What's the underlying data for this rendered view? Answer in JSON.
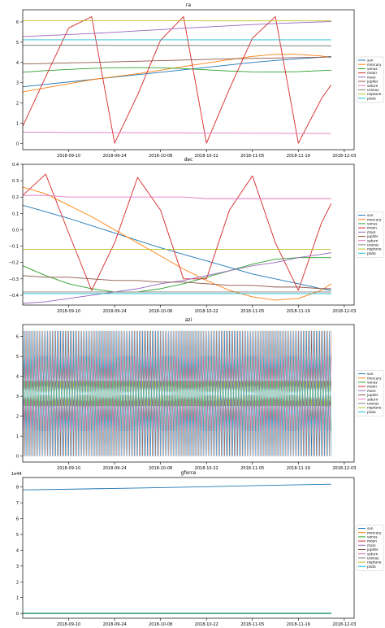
{
  "chart_data": [
    {
      "type": "line",
      "title": "ra",
      "ylim": [
        -0.3,
        6.6
      ],
      "yticks": [
        0,
        1,
        2,
        3,
        4,
        5,
        6
      ],
      "ytick_labels": [
        "0",
        "1",
        "2",
        "3",
        "4",
        "5",
        "6"
      ],
      "x_dates": [
        "2018-08-27",
        "2018-09-03",
        "2018-09-10",
        "2018-09-17",
        "2018-09-24",
        "2018-10-01",
        "2018-10-08",
        "2018-10-15",
        "2018-10-22",
        "2018-10-29",
        "2018-11-05",
        "2018-11-12",
        "2018-11-19",
        "2018-11-26",
        "2018-11-29"
      ],
      "grid": false,
      "legend": "right",
      "series": [
        {
          "name": "sun",
          "values": [
            2.8,
            2.92,
            3.04,
            3.16,
            3.28,
            3.4,
            3.52,
            3.64,
            3.76,
            3.88,
            4.0,
            4.1,
            4.18,
            4.26,
            4.3
          ]
        },
        {
          "name": "mercury",
          "values": [
            2.55,
            2.75,
            2.95,
            3.15,
            3.3,
            3.45,
            3.62,
            3.8,
            3.97,
            4.14,
            4.3,
            4.4,
            4.4,
            4.32,
            4.25
          ]
        },
        {
          "name": "venus",
          "values": [
            3.52,
            3.6,
            3.66,
            3.71,
            3.74,
            3.75,
            3.74,
            3.7,
            3.64,
            3.58,
            3.54,
            3.53,
            3.55,
            3.6,
            3.62
          ]
        },
        {
          "name": "moon",
          "values": [
            0.85,
            3.3,
            5.7,
            6.26,
            0.02,
            2.4,
            5.1,
            6.26,
            0.02,
            2.7,
            5.2,
            6.26,
            0.02,
            2.2,
            2.9
          ]
        },
        {
          "name": "mars",
          "values": [
            5.28,
            5.33,
            5.38,
            5.43,
            5.49,
            5.56,
            5.62,
            5.69,
            5.75,
            5.81,
            5.87,
            5.92,
            5.96,
            6.0,
            6.02
          ]
        },
        {
          "name": "jupiter",
          "values": [
            3.93,
            3.95,
            3.98,
            4.0,
            4.03,
            4.06,
            4.09,
            4.12,
            4.15,
            4.18,
            4.2,
            4.22,
            4.24,
            4.26,
            4.27
          ]
        },
        {
          "name": "saturn",
          "values": [
            0.56,
            0.56,
            0.55,
            0.55,
            0.54,
            0.54,
            0.53,
            0.53,
            0.52,
            0.52,
            0.51,
            0.51,
            0.5,
            0.5,
            0.5
          ]
        },
        {
          "name": "uranus",
          "values": [
            4.85,
            4.85,
            4.85,
            4.85,
            4.84,
            4.84,
            4.84,
            4.84,
            4.83,
            4.83,
            4.83,
            4.83,
            4.82,
            4.82,
            4.82
          ]
        },
        {
          "name": "neptune",
          "values": [
            6.06,
            6.06,
            6.06,
            6.06,
            6.06,
            6.06,
            6.06,
            6.06,
            6.05,
            6.05,
            6.05,
            6.05,
            6.05,
            6.05,
            6.05
          ]
        },
        {
          "name": "pluto",
          "values": [
            5.12,
            5.12,
            5.12,
            5.12,
            5.12,
            5.12,
            5.12,
            5.12,
            5.12,
            5.12,
            5.12,
            5.12,
            5.12,
            5.12,
            5.12
          ]
        }
      ]
    },
    {
      "type": "line",
      "title": "dec",
      "ylim": [
        -0.46,
        0.4
      ],
      "yticks": [
        -0.4,
        -0.3,
        -0.2,
        -0.1,
        0.0,
        0.1,
        0.2,
        0.3,
        0.4
      ],
      "ytick_labels": [
        "−0.4",
        "−0.3",
        "−0.2",
        "−0.1",
        "0.0",
        "0.1",
        "0.2",
        "0.3",
        "0.4"
      ],
      "x_dates": [
        "2018-08-27",
        "2018-09-03",
        "2018-09-10",
        "2018-09-17",
        "2018-09-24",
        "2018-10-01",
        "2018-10-08",
        "2018-10-15",
        "2018-10-22",
        "2018-10-29",
        "2018-11-05",
        "2018-11-12",
        "2018-11-19",
        "2018-11-26",
        "2018-11-29"
      ],
      "grid": false,
      "legend": "right",
      "series": [
        {
          "name": "sun",
          "values": [
            0.15,
            0.11,
            0.07,
            0.025,
            -0.02,
            -0.065,
            -0.11,
            -0.15,
            -0.19,
            -0.23,
            -0.27,
            -0.3,
            -0.33,
            -0.36,
            -0.37
          ]
        },
        {
          "name": "mercury",
          "values": [
            0.26,
            0.22,
            0.15,
            0.08,
            0.0,
            -0.08,
            -0.16,
            -0.24,
            -0.31,
            -0.37,
            -0.41,
            -0.43,
            -0.42,
            -0.37,
            -0.33
          ]
        },
        {
          "name": "venus",
          "values": [
            -0.22,
            -0.28,
            -0.33,
            -0.36,
            -0.38,
            -0.38,
            -0.36,
            -0.33,
            -0.29,
            -0.25,
            -0.21,
            -0.18,
            -0.17,
            -0.17,
            -0.17
          ]
        },
        {
          "name": "moon",
          "values": [
            0.21,
            0.34,
            -0.02,
            -0.37,
            -0.08,
            0.32,
            0.12,
            -0.3,
            -0.3,
            0.12,
            0.33,
            -0.08,
            -0.37,
            0.04,
            0.16
          ]
        },
        {
          "name": "mars",
          "values": [
            -0.45,
            -0.44,
            -0.42,
            -0.4,
            -0.38,
            -0.36,
            -0.33,
            -0.31,
            -0.28,
            -0.25,
            -0.22,
            -0.2,
            -0.17,
            -0.15,
            -0.14
          ]
        },
        {
          "name": "jupiter",
          "values": [
            -0.28,
            -0.29,
            -0.29,
            -0.3,
            -0.31,
            -0.31,
            -0.32,
            -0.32,
            -0.33,
            -0.34,
            -0.34,
            -0.35,
            -0.35,
            -0.36,
            -0.36
          ]
        },
        {
          "name": "saturn",
          "values": [
            0.21,
            0.21,
            0.2,
            0.2,
            0.2,
            0.2,
            0.2,
            0.2,
            0.19,
            0.19,
            0.19,
            0.19,
            0.19,
            0.19,
            0.19
          ]
        },
        {
          "name": "uranus",
          "values": [
            -0.38,
            -0.38,
            -0.38,
            -0.38,
            -0.38,
            -0.38,
            -0.38,
            -0.38,
            -0.38,
            -0.38,
            -0.38,
            -0.38,
            -0.38,
            -0.38,
            -0.38
          ]
        },
        {
          "name": "neptune",
          "values": [
            -0.12,
            -0.12,
            -0.12,
            -0.12,
            -0.12,
            -0.12,
            -0.12,
            -0.12,
            -0.12,
            -0.12,
            -0.12,
            -0.12,
            -0.12,
            -0.12,
            -0.12
          ]
        },
        {
          "name": "pluto",
          "values": [
            -0.39,
            -0.39,
            -0.39,
            -0.39,
            -0.39,
            -0.39,
            -0.39,
            -0.39,
            -0.39,
            -0.39,
            -0.39,
            -0.39,
            -0.39,
            -0.39,
            -0.39
          ]
        }
      ]
    },
    {
      "type": "line",
      "title": "azi",
      "ylim": [
        -0.3,
        6.6
      ],
      "yticks": [
        0,
        1,
        2,
        3,
        4,
        5,
        6
      ],
      "ytick_labels": [
        "0",
        "1",
        "2",
        "3",
        "4",
        "5",
        "6"
      ],
      "x_dates": [
        "2018-08-27",
        "2018-11-29"
      ],
      "grid": false,
      "legend": "right",
      "note_pattern": "each series sweeps 0 to 2π once per day (daily rotation)",
      "cycle_days": 1,
      "range": [
        0,
        6.28
      ],
      "series": [
        {
          "name": "sun"
        },
        {
          "name": "mercury"
        },
        {
          "name": "venus"
        },
        {
          "name": "moon"
        },
        {
          "name": "mars"
        },
        {
          "name": "jupiter"
        },
        {
          "name": "saturn"
        },
        {
          "name": "uranus"
        },
        {
          "name": "neptune"
        },
        {
          "name": "pluto"
        }
      ]
    },
    {
      "type": "line",
      "title": "gforce",
      "offset_label": "1e44",
      "ylim": [
        -0.3,
        8.6
      ],
      "yticks": [
        0,
        1,
        2,
        3,
        4,
        5,
        6,
        7,
        8
      ],
      "ytick_labels": [
        "0",
        "1",
        "2",
        "3",
        "4",
        "5",
        "6",
        "7",
        "8"
      ],
      "x_dates": [
        "2018-08-27",
        "2018-09-10",
        "2018-09-24",
        "2018-10-08",
        "2018-10-22",
        "2018-11-05",
        "2018-11-19",
        "2018-11-29"
      ],
      "grid": false,
      "legend": "right",
      "series": [
        {
          "name": "sun",
          "values": [
            7.82,
            7.86,
            7.91,
            7.96,
            8.02,
            8.08,
            8.14,
            8.18
          ]
        },
        {
          "name": "mercury",
          "values": [
            0.02,
            0.02,
            0.02,
            0.02,
            0.02,
            0.02,
            0.02,
            0.02
          ]
        },
        {
          "name": "venus",
          "values": [
            0.03,
            0.03,
            0.03,
            0.03,
            0.03,
            0.03,
            0.03,
            0.03
          ]
        },
        {
          "name": "moon",
          "values": [
            0.0,
            0.0,
            0.0,
            0.0,
            0.0,
            0.0,
            0.0,
            0.0
          ]
        },
        {
          "name": "mars",
          "values": [
            0.01,
            0.01,
            0.01,
            0.01,
            0.01,
            0.01,
            0.01,
            0.01
          ]
        },
        {
          "name": "jupiter",
          "values": [
            0.01,
            0.01,
            0.01,
            0.01,
            0.01,
            0.01,
            0.01,
            0.01
          ]
        },
        {
          "name": "saturn",
          "values": [
            0.0,
            0.0,
            0.0,
            0.0,
            0.0,
            0.0,
            0.0,
            0.0
          ]
        },
        {
          "name": "uranus",
          "values": [
            0.0,
            0.0,
            0.0,
            0.0,
            0.0,
            0.0,
            0.0,
            0.0
          ]
        },
        {
          "name": "neptune",
          "values": [
            0.0,
            0.0,
            0.0,
            0.0,
            0.0,
            0.0,
            0.0,
            0.0
          ]
        },
        {
          "name": "pluto",
          "values": [
            0.0,
            0.0,
            0.0,
            0.0,
            0.0,
            0.0,
            0.0,
            0.0
          ]
        }
      ]
    }
  ],
  "x_axis": {
    "range": [
      "2018-08-27",
      "2018-12-06"
    ],
    "ticks": [
      "2018-09-10",
      "2018-09-24",
      "2018-10-08",
      "2018-10-22",
      "2018-11-05",
      "2018-11-19",
      "2018-12-03"
    ]
  },
  "colors": [
    "#1f77b4",
    "#ff7f0e",
    "#2ca02c",
    "#d62728",
    "#9467bd",
    "#8c564b",
    "#e377c2",
    "#7f7f7f",
    "#bcbd22",
    "#17becf"
  ]
}
